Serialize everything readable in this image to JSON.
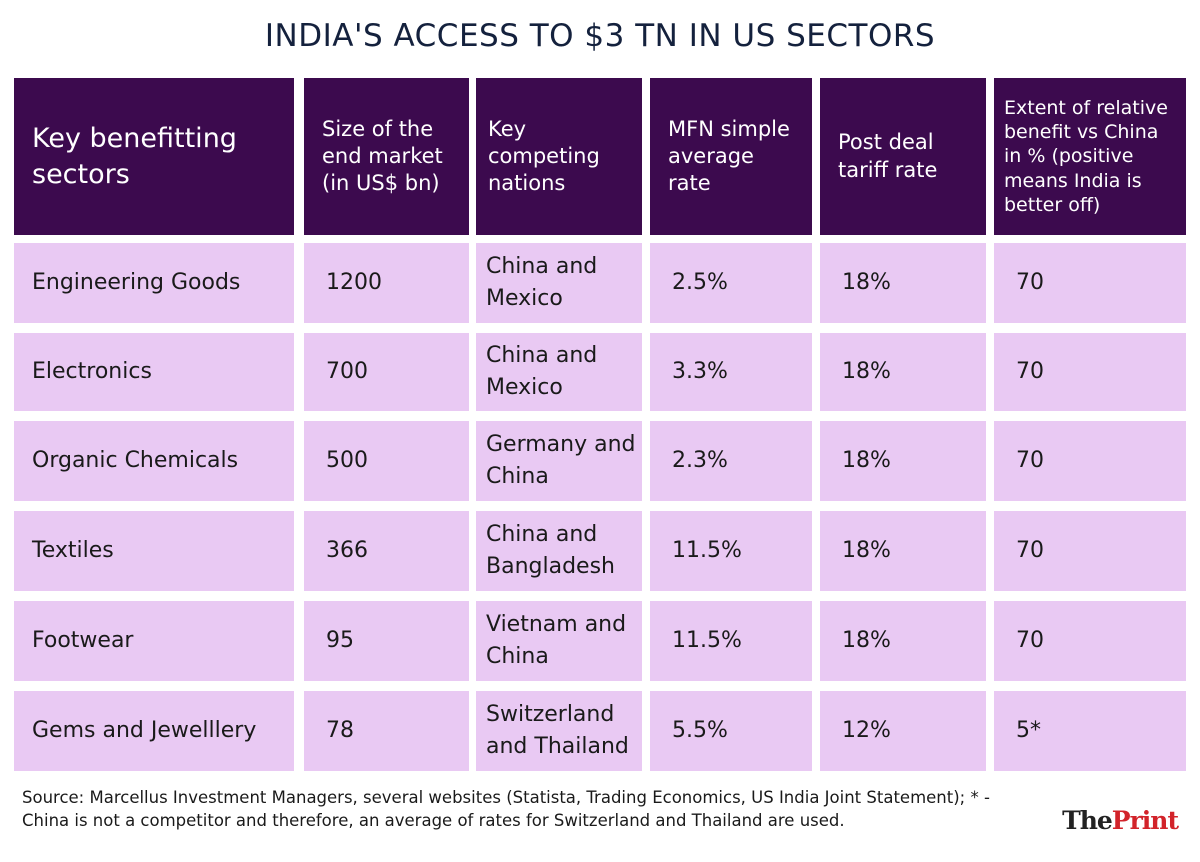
{
  "header": {
    "title": "INDIA'S ACCESS TO $3 TN IN US SECTORS"
  },
  "table": {
    "columns": [
      "Key benefitting sectors",
      "Size of the end market (in US$ bn)",
      "Key competing nations",
      "MFN simple average rate",
      "Post deal tariff rate",
      "Extent of relative benefit vs China in % (positive means India is better off)"
    ],
    "rows": [
      [
        "Engineering Goods",
        "1200",
        "China and Mexico",
        "2.5%",
        "18%",
        "70"
      ],
      [
        "Electronics",
        "700",
        "China and Mexico",
        "3.3%",
        "18%",
        "70"
      ],
      [
        "Organic Chemicals",
        "500",
        "Germany and China",
        "2.3%",
        "18%",
        "70"
      ],
      [
        "Textiles",
        "366",
        "China and Bangladesh",
        "11.5%",
        "18%",
        "70"
      ],
      [
        "Footwear",
        "95",
        "Vietnam and China",
        "11.5%",
        "18%",
        "70"
      ],
      [
        "Gems and Jewelllery",
        "78",
        "Switzerland and Thailand",
        "5.5%",
        "12%",
        "5*"
      ]
    ]
  },
  "source": "Source: Marcellus Investment Managers, several websites (Statista, Trading Economics, US India Joint Statement); * - China is not a competitor and therefore, an average of rates for Switzerland and Thailand are used.",
  "logo": [
    "The",
    "Print"
  ]
}
